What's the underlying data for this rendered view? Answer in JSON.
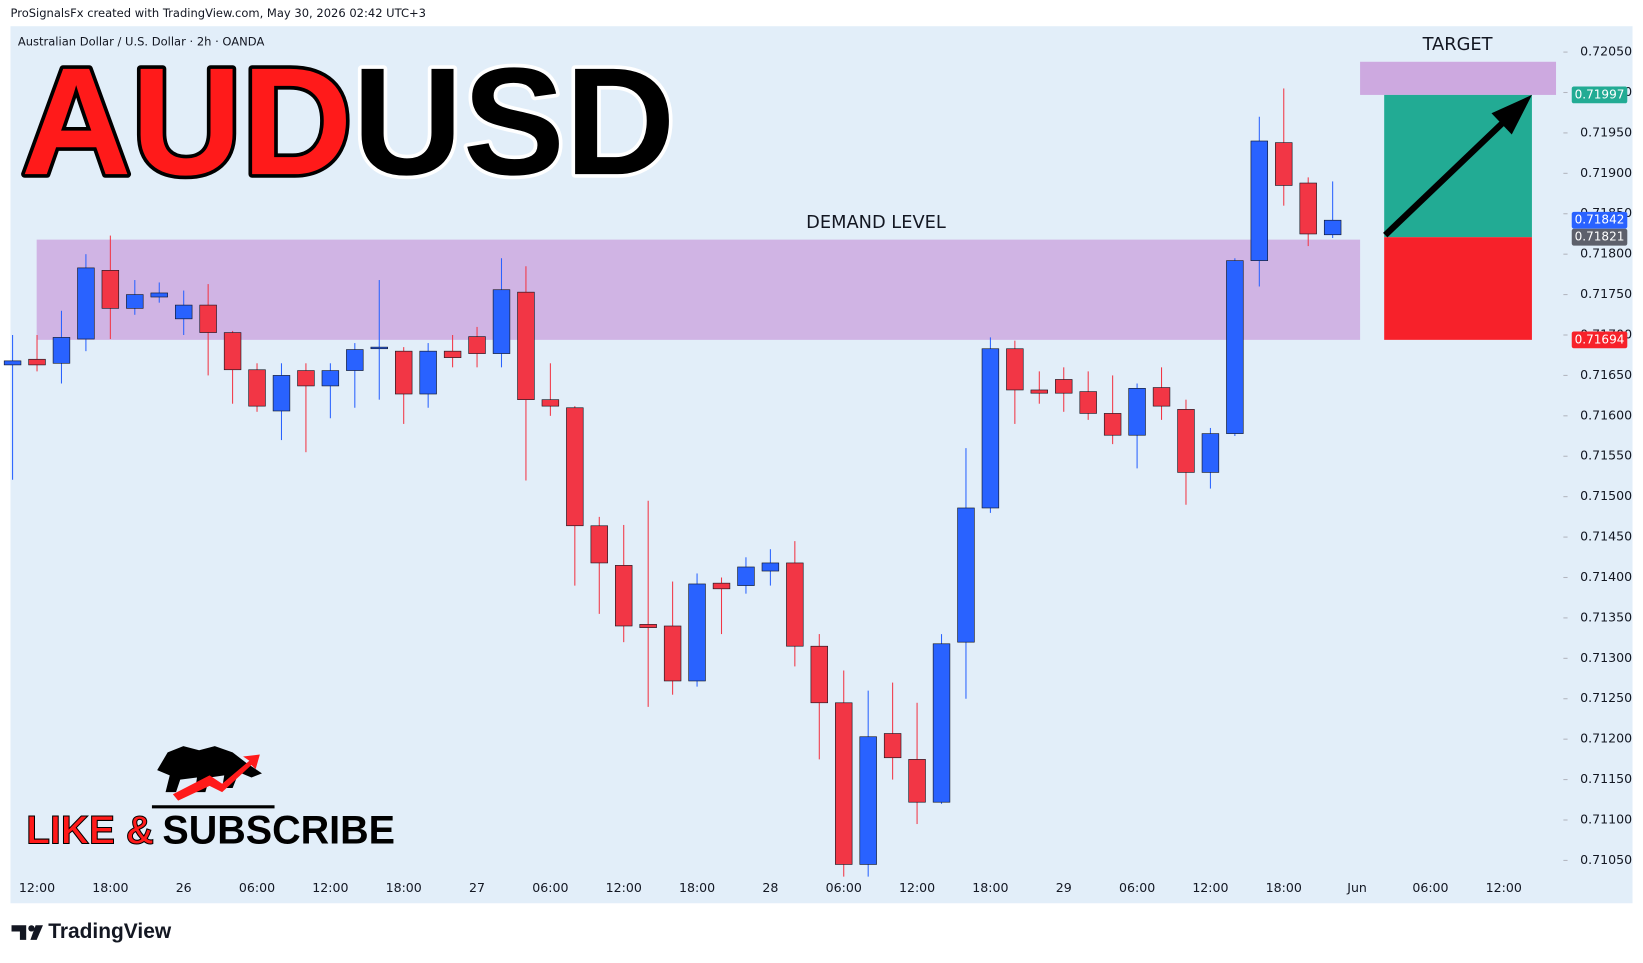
{
  "header": "ProSignalsFx created with TradingView.com, May 30, 2026 02:42 UTC+3",
  "footer": {
    "logo": "TradingView"
  },
  "promo": {
    "like": "LIKE &",
    "subscribe": "SUBSCRIBE"
  },
  "chart_data": {
    "type": "candlestick",
    "symbol": "Australian Dollar / U.S. Dollar · 2h · OANDA",
    "title": [
      {
        "text": "AUD",
        "color": "#ff1a1a"
      },
      {
        "text": "USD",
        "color": "#000000"
      }
    ],
    "up_color": "#2962ff",
    "down_color": "#f23645",
    "ylim": [
      0.71032,
      0.72082
    ],
    "yticks": [
      {
        "value": 0.7205,
        "label": "0.72050"
      },
      {
        "value": 0.72,
        "label": "0.72000"
      },
      {
        "value": 0.7195,
        "label": "0.71950"
      },
      {
        "value": 0.719,
        "label": "0.71900"
      },
      {
        "value": 0.7185,
        "label": "0.71850"
      },
      {
        "value": 0.718,
        "label": "0.71800"
      },
      {
        "value": 0.7175,
        "label": "0.71750"
      },
      {
        "value": 0.717,
        "label": "0.71700"
      },
      {
        "value": 0.7165,
        "label": "0.71650"
      },
      {
        "value": 0.716,
        "label": "0.71600"
      },
      {
        "value": 0.7155,
        "label": "0.71550"
      },
      {
        "value": 0.715,
        "label": "0.71500"
      },
      {
        "value": 0.7145,
        "label": "0.71450"
      },
      {
        "value": 0.714,
        "label": "0.71400"
      },
      {
        "value": 0.7135,
        "label": "0.71350"
      },
      {
        "value": 0.713,
        "label": "0.71300"
      },
      {
        "value": 0.7125,
        "label": "0.71250"
      },
      {
        "value": 0.712,
        "label": "0.71200"
      },
      {
        "value": 0.7115,
        "label": "0.71150"
      },
      {
        "value": 0.711,
        "label": "0.71100"
      },
      {
        "value": 0.7105,
        "label": "0.71050"
      }
    ],
    "categories": [
      null,
      "12:00",
      null,
      null,
      "18:00",
      null,
      null,
      "26",
      null,
      null,
      "06:00",
      null,
      null,
      "12:00",
      null,
      null,
      "18:00",
      null,
      null,
      "27",
      null,
      null,
      "06:00",
      null,
      null,
      "12:00",
      null,
      null,
      "18:00",
      null,
      null,
      "28",
      null,
      null,
      "06:00",
      null,
      null,
      "12:00",
      null,
      null,
      "18:00",
      null,
      null,
      "29",
      null,
      null,
      "06:00",
      null,
      null,
      "12:00",
      null,
      null,
      "18:00",
      null,
      null,
      "Jun",
      null,
      null,
      "06:00",
      null,
      null,
      "12:00"
    ],
    "open": [
      0.71663,
      0.7167,
      0.71665,
      0.71695,
      0.7178,
      0.71733,
      0.71747,
      0.7172,
      0.71737,
      0.71703,
      0.71657,
      0.71606,
      0.71656,
      0.71637,
      0.71656,
      0.71683,
      0.7168,
      0.71627,
      0.7168,
      0.71698,
      0.71677,
      0.71753,
      0.7162,
      0.7161,
      0.71464,
      0.71415,
      0.71342,
      0.7134,
      0.71272,
      0.71393,
      0.7139,
      0.71408,
      0.71418,
      0.71315,
      0.71245,
      0.71045,
      0.71207,
      0.71175,
      0.71122,
      0.7132,
      0.71486,
      0.71683,
      0.71632,
      0.71645,
      0.7163,
      0.71603,
      0.71576,
      0.71635,
      0.71608,
      0.7153,
      0.71578,
      0.71792,
      0.71938,
      0.71888,
      0.71824,
      null,
      null,
      null,
      null,
      null,
      null,
      null
    ],
    "high": [
      0.717,
      0.717,
      0.7173,
      0.718,
      0.71823,
      0.71768,
      0.71765,
      0.71755,
      0.71763,
      0.71705,
      0.71665,
      0.71665,
      0.71665,
      0.71665,
      0.7169,
      0.71768,
      0.71685,
      0.7169,
      0.717,
      0.7171,
      0.71795,
      0.71785,
      0.71665,
      0.71612,
      0.71475,
      0.71465,
      0.71495,
      0.71395,
      0.71405,
      0.714,
      0.71425,
      0.71435,
      0.71445,
      0.7133,
      0.71285,
      0.7126,
      0.7127,
      0.71245,
      0.7133,
      0.7156,
      0.71697,
      0.71693,
      0.71655,
      0.7166,
      0.71655,
      0.7165,
      0.7164,
      0.7166,
      0.7162,
      0.71585,
      0.71795,
      0.7197,
      0.72005,
      0.71895,
      0.7189,
      null,
      null,
      null,
      null,
      null,
      null,
      null
    ],
    "low": [
      0.71521,
      0.71655,
      0.7164,
      0.7168,
      0.71695,
      0.71725,
      0.7174,
      0.717,
      0.7165,
      0.71615,
      0.71605,
      0.7157,
      0.71555,
      0.71597,
      0.7161,
      0.7162,
      0.7159,
      0.7161,
      0.7166,
      0.7166,
      0.7166,
      0.7152,
      0.716,
      0.7139,
      0.71355,
      0.7132,
      0.7124,
      0.71255,
      0.71265,
      0.7133,
      0.7138,
      0.7139,
      0.7129,
      0.71175,
      0.7103,
      0.7103,
      0.7115,
      0.71095,
      0.7112,
      0.7125,
      0.7148,
      0.7159,
      0.71615,
      0.71605,
      0.71595,
      0.71565,
      0.71535,
      0.71595,
      0.7149,
      0.7151,
      0.71575,
      0.7176,
      0.7186,
      0.7181,
      0.7182,
      null,
      null,
      null,
      null,
      null,
      null,
      null
    ],
    "close": [
      0.71668,
      0.71663,
      0.71697,
      0.71783,
      0.71733,
      0.7175,
      0.71752,
      0.71737,
      0.71703,
      0.71657,
      0.71612,
      0.7165,
      0.71637,
      0.71656,
      0.71682,
      0.71685,
      0.71627,
      0.7168,
      0.71672,
      0.71677,
      0.71756,
      0.7162,
      0.71612,
      0.71464,
      0.71418,
      0.7134,
      0.71338,
      0.71272,
      0.71392,
      0.71386,
      0.71413,
      0.71418,
      0.71315,
      0.71245,
      0.71045,
      0.71203,
      0.71177,
      0.71122,
      0.71318,
      0.71486,
      0.71683,
      0.71632,
      0.71628,
      0.71628,
      0.71603,
      0.71576,
      0.71634,
      0.71612,
      0.7153,
      0.71578,
      0.71792,
      0.7194,
      0.71885,
      0.71825,
      0.71842,
      null,
      null,
      null,
      null,
      null,
      null,
      null
    ],
    "demand_zone": {
      "label": "DEMAND LEVEL",
      "top": 0.71818,
      "bottom": 0.71694,
      "color": "#cda9e0"
    },
    "target_zone": {
      "label": "TARGET",
      "top": 0.72038,
      "bottom": 0.71997,
      "color": "#cda9e0"
    },
    "position": {
      "target": 0.71997,
      "entry": 0.71821,
      "stop": 0.71694,
      "profit_color": "#22ab94",
      "loss_color": "#f7212a"
    },
    "price_labels": [
      {
        "value": 0.71997,
        "label": "0.71997",
        "color": "#22ab94"
      },
      {
        "value": 0.71842,
        "label": "0.71842",
        "color": "#2962ff"
      },
      {
        "value": 0.71821,
        "label": "0.71821",
        "color": "#5d606b"
      },
      {
        "value": 0.71694,
        "label": "0.71694",
        "color": "#f7212a"
      }
    ]
  }
}
